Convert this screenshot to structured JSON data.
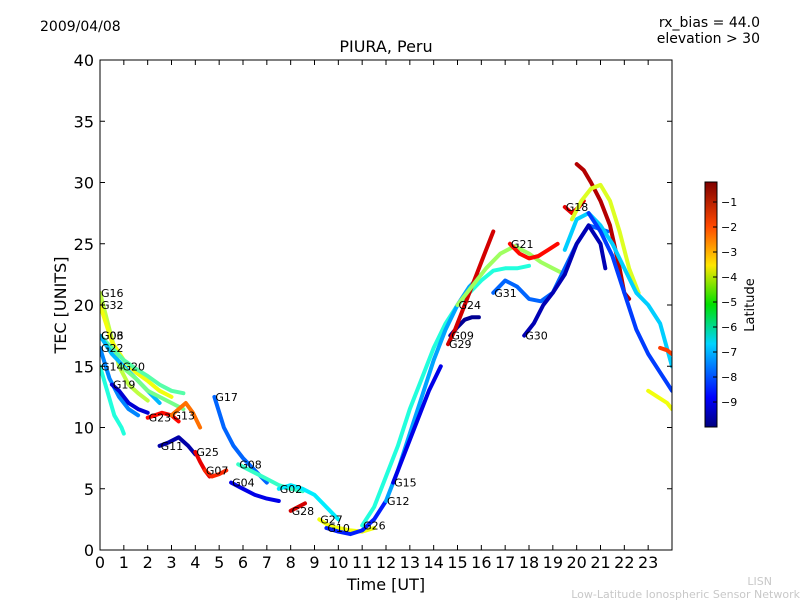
{
  "chart_data": {
    "type": "scatter",
    "date": "2009/04/08",
    "title": "PIURA, Peru",
    "params": [
      "rx_bias = 44.0",
      "elevation > 30"
    ],
    "xlabel": "Time [UT]",
    "ylabel": "TEC [UNITS]",
    "xlim": [
      0,
      24
    ],
    "ylim": [
      0,
      40
    ],
    "xticks": [
      0,
      1,
      2,
      3,
      4,
      5,
      6,
      7,
      8,
      9,
      10,
      11,
      12,
      13,
      14,
      15,
      16,
      17,
      18,
      19,
      20,
      21,
      22,
      23
    ],
    "yticks": [
      0,
      5,
      10,
      15,
      20,
      25,
      30,
      35,
      40
    ],
    "colorbar": {
      "label": "Latitude",
      "range": [
        -10,
        -0.2
      ],
      "ticks": [
        -1,
        -2,
        -3,
        -4,
        -5,
        -6,
        -7,
        -8,
        -9
      ]
    },
    "footer": [
      "LISN",
      "Low-Latitude Ionospheric Sensor Network"
    ],
    "series": [
      {
        "name": "G16",
        "lat": -4.5,
        "x": [
          0,
          0.4,
          0.8,
          1.2,
          1.6,
          2.0
        ],
        "y": [
          21.0,
          18.0,
          15.0,
          13.5,
          12.8,
          12.2
        ]
      },
      {
        "name": "G32",
        "lat": -4.0,
        "x": [
          0,
          0.5,
          1.0,
          1.5,
          2.0,
          2.5,
          3.0
        ],
        "y": [
          20.0,
          17.0,
          15.5,
          14.5,
          13.8,
          13.0,
          12.5
        ]
      },
      {
        "name": "G03",
        "lat": -5.5,
        "x": [
          0,
          0.5,
          1.0,
          1.5,
          2.0,
          2.5,
          3.0,
          3.5
        ],
        "y": [
          17.5,
          16.5,
          15.5,
          14.8,
          14.2,
          13.5,
          13.0,
          12.8
        ]
      },
      {
        "name": "G06",
        "lat": -7.0,
        "x": [
          0,
          0.5,
          1.0,
          1.5,
          2.0,
          2.5
        ],
        "y": [
          17.5,
          16.0,
          15.0,
          14.0,
          13.0,
          12.0
        ]
      },
      {
        "name": "G14",
        "lat": -6.0,
        "x": [
          0,
          0.3,
          0.6,
          0.9,
          1.0
        ],
        "y": [
          15.0,
          13.0,
          11.0,
          10.0,
          9.5
        ]
      },
      {
        "name": "G20",
        "lat": -5.2,
        "x": [
          0.9,
          1.5,
          2.0,
          2.5,
          3.0,
          3.5
        ],
        "y": [
          15.0,
          14.0,
          13.0,
          12.5,
          12.0,
          11.5
        ]
      },
      {
        "name": "G22",
        "lat": -7.5,
        "x": [
          0,
          0.4,
          0.8,
          1.2,
          1.6
        ],
        "y": [
          16.5,
          14.0,
          12.5,
          11.5,
          11.0
        ]
      },
      {
        "name": "G19",
        "lat": -9.2,
        "x": [
          0.5,
          0.8,
          1.2,
          1.6,
          2.0
        ],
        "y": [
          13.5,
          13.0,
          12.0,
          11.5,
          11.2
        ]
      },
      {
        "name": "G23",
        "lat": -1.5,
        "x": [
          2.0,
          2.3,
          2.6,
          3.0,
          3.3
        ],
        "y": [
          10.8,
          11.0,
          11.2,
          11.0,
          10.5
        ]
      },
      {
        "name": "G13",
        "lat": -2.5,
        "x": [
          3.0,
          3.3,
          3.6,
          3.9,
          4.2
        ],
        "y": [
          11.0,
          11.5,
          12.0,
          11.2,
          10.0
        ]
      },
      {
        "name": "G11",
        "lat": -9.6,
        "x": [
          2.5,
          2.9,
          3.3,
          3.7,
          4.0
        ],
        "y": [
          8.5,
          8.8,
          9.2,
          8.5,
          7.8
        ]
      },
      {
        "name": "G25",
        "lat": -1.2,
        "x": [
          4.0,
          4.2,
          4.4,
          4.6
        ],
        "y": [
          8.0,
          7.2,
          6.5,
          6.0
        ]
      },
      {
        "name": "G07",
        "lat": -1.8,
        "x": [
          4.4,
          4.7,
          5.0,
          5.3
        ],
        "y": [
          6.5,
          6.0,
          6.2,
          6.5
        ]
      },
      {
        "name": "G17",
        "lat": -7.8,
        "x": [
          4.8,
          5.2,
          5.6,
          6.0,
          6.5,
          7.0
        ],
        "y": [
          12.5,
          10.0,
          8.5,
          7.5,
          6.5,
          5.5
        ]
      },
      {
        "name": "G08",
        "lat": -5.8,
        "x": [
          5.8,
          6.5,
          7.0,
          7.5,
          8.0,
          8.5
        ],
        "y": [
          7.0,
          6.3,
          5.8,
          5.3,
          5.0,
          4.8
        ]
      },
      {
        "name": "G04",
        "lat": -9.0,
        "x": [
          5.5,
          6.0,
          6.5,
          7.0,
          7.5
        ],
        "y": [
          5.5,
          5.0,
          4.5,
          4.2,
          4.0
        ]
      },
      {
        "name": "G02",
        "lat": -6.5,
        "x": [
          7.5,
          8.0,
          8.5,
          9.0,
          9.5,
          10.0
        ],
        "y": [
          5.0,
          5.3,
          5.0,
          4.5,
          3.5,
          2.5
        ]
      },
      {
        "name": "G28",
        "lat": -1.0,
        "x": [
          8.0,
          8.3,
          8.6
        ],
        "y": [
          3.2,
          3.5,
          3.8
        ]
      },
      {
        "name": "G27",
        "lat": -4.0,
        "x": [
          9.2,
          9.6,
          10.0,
          10.5,
          11.0,
          11.5
        ],
        "y": [
          2.5,
          2.0,
          1.8,
          1.6,
          1.5,
          1.8
        ]
      },
      {
        "name": "G10",
        "lat": -8.5,
        "x": [
          9.5,
          10.0,
          10.5,
          11.0,
          11.5,
          12.0
        ],
        "y": [
          1.8,
          1.5,
          1.3,
          1.6,
          2.5,
          4.0
        ]
      },
      {
        "name": "G26",
        "lat": -6.0,
        "x": [
          11.0,
          11.5,
          12.0,
          12.5,
          13.0,
          13.5,
          14.0,
          14.5,
          15.0,
          15.5,
          16.0,
          16.5,
          17.0,
          17.5,
          18.0
        ],
        "y": [
          2.0,
          3.5,
          6.0,
          8.5,
          11.5,
          14.0,
          16.5,
          18.5,
          20.0,
          21.0,
          22.0,
          22.8,
          23.0,
          23.0,
          23.2
        ]
      },
      {
        "name": "G12",
        "lat": -7.2,
        "x": [
          12.0,
          12.5,
          13.0,
          13.5,
          14.0,
          14.5,
          15.0,
          15.5,
          16.0
        ],
        "y": [
          4.0,
          6.5,
          9.5,
          12.5,
          15.5,
          18.0,
          20.0,
          21.5,
          22.5
        ]
      },
      {
        "name": "G15",
        "lat": -9.0,
        "x": [
          12.3,
          12.8,
          13.3,
          13.8,
          14.3
        ],
        "y": [
          5.5,
          8.0,
          10.5,
          13.0,
          15.0
        ]
      },
      {
        "name": "G09",
        "lat": -9.8,
        "x": [
          14.7,
          15.0,
          15.3,
          15.6,
          15.9
        ],
        "y": [
          17.5,
          18.2,
          18.8,
          19.0,
          19.0
        ]
      },
      {
        "name": "G29",
        "lat": -1.0,
        "x": [
          14.6,
          14.9,
          15.2,
          15.5,
          15.8,
          16.1,
          16.5
        ],
        "y": [
          16.8,
          18.0,
          19.5,
          21.0,
          22.5,
          24.0,
          26.0
        ]
      },
      {
        "name": "G24",
        "lat": -4.8,
        "x": [
          15.0,
          15.6,
          16.2,
          16.8,
          17.4,
          18.0,
          18.5,
          19.0,
          19.5
        ],
        "y": [
          20.0,
          21.5,
          23.0,
          24.2,
          24.8,
          24.2,
          23.5,
          23.0,
          22.5
        ]
      },
      {
        "name": "G21",
        "lat": -1.5,
        "x": [
          17.2,
          17.6,
          18.0,
          18.4,
          18.8,
          19.2
        ],
        "y": [
          25.0,
          24.2,
          23.8,
          24.0,
          24.5,
          25.0
        ]
      },
      {
        "name": "G31",
        "lat": -7.8,
        "x": [
          16.5,
          17.0,
          17.5,
          18.0,
          18.5,
          19.0,
          19.5,
          20.0,
          20.5,
          21.0,
          21.3
        ],
        "y": [
          21.0,
          22.0,
          21.5,
          20.5,
          20.3,
          21.0,
          23.0,
          25.0,
          26.5,
          26.2,
          26.0
        ]
      },
      {
        "name": "G30",
        "lat": -9.5,
        "x": [
          17.8,
          18.2,
          18.6,
          19.0,
          19.5,
          20.0,
          20.5,
          21.0,
          21.2
        ],
        "y": [
          17.5,
          18.5,
          20.0,
          21.0,
          22.5,
          25.0,
          26.5,
          25.0,
          23.0
        ]
      },
      {
        "name": "G18",
        "lat": -1.2,
        "x": [
          19.5,
          19.8,
          20.1,
          20.3
        ],
        "y": [
          28.0,
          27.5,
          28.0,
          28.5
        ]
      },
      {
        "name": "",
        "lat": -0.7,
        "x": [
          20.0,
          20.3,
          20.6,
          21.0,
          21.4,
          21.8,
          22.0,
          22.2
        ],
        "y": [
          31.5,
          31.0,
          30.0,
          28.5,
          26.5,
          23.0,
          21.0,
          20.5
        ]
      },
      {
        "name": "",
        "lat": -4.2,
        "x": [
          19.8,
          20.2,
          20.6,
          21.0,
          21.4,
          21.8,
          22.2,
          22.6
        ],
        "y": [
          27.0,
          28.5,
          29.5,
          29.8,
          28.5,
          26.0,
          23.0,
          21.0
        ]
      },
      {
        "name": "",
        "lat": -6.8,
        "x": [
          19.5,
          20.0,
          20.5,
          21.0,
          21.5,
          22.0,
          22.5,
          23.0,
          23.5,
          24.0
        ],
        "y": [
          24.5,
          27.0,
          27.5,
          26.5,
          25.0,
          23.0,
          21.0,
          20.0,
          18.5,
          15.0
        ]
      },
      {
        "name": "",
        "lat": -8.2,
        "x": [
          20.5,
          21.0,
          21.5,
          22.0,
          22.5,
          23.0,
          23.5,
          24.0
        ],
        "y": [
          27.5,
          26.0,
          24.0,
          21.0,
          18.0,
          16.0,
          14.5,
          13.0
        ]
      },
      {
        "name": "",
        "lat": -4.0,
        "x": [
          23.0,
          23.4,
          23.8,
          24.0
        ],
        "y": [
          13.0,
          12.5,
          12.0,
          11.5
        ]
      },
      {
        "name": "",
        "lat": -2.0,
        "x": [
          23.5,
          23.8,
          24.0
        ],
        "y": [
          16.5,
          16.3,
          16.0
        ]
      }
    ]
  }
}
